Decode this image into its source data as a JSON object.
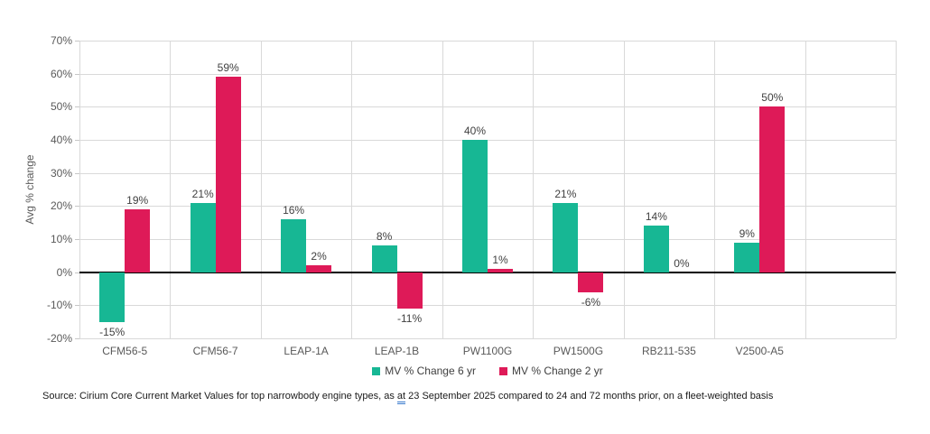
{
  "chart_data": {
    "type": "bar",
    "title": "",
    "categories": [
      "CFM56-5",
      "CFM56-7",
      "LEAP-1A",
      "LEAP-1B",
      "PW1100G",
      "PW1500G",
      "RB211-535",
      "V2500-A5"
    ],
    "series": [
      {
        "name": "MV % Change 6 yr",
        "color": "#17B794",
        "values": [
          -15,
          21,
          16,
          8,
          40,
          21,
          14,
          9
        ]
      },
      {
        "name": "MV % Change 2 yr",
        "color": "#DE1A58",
        "values": [
          19,
          59,
          2,
          -11,
          1,
          -6,
          0,
          50
        ]
      }
    ],
    "xlabel": "",
    "ylabel": "Avg % change",
    "ylim": [
      -20,
      70
    ],
    "ytick_step": 10,
    "ytick_suffix": "%",
    "data_label_suffix": "%",
    "grid": true,
    "legend_position": "bottom",
    "empty_trailing_columns": 1,
    "zero_baseline_emphasized": true
  },
  "style": {
    "grid_color": "#d9d9d9",
    "zero_line_color": "#000000",
    "axis_label_color": "#595959",
    "data_label_color": "#404040",
    "series_6yr_color": "#17B794",
    "series_2yr_color": "#DE1A58"
  },
  "source_note": {
    "text_before": "Source: Cirium Core Current Market Values for top narrowbody engine types, as ",
    "marked_word": "at",
    "text_after": " 23 September 2025 compared to 24 and 72 months prior, on a fleet-weighted basis"
  }
}
